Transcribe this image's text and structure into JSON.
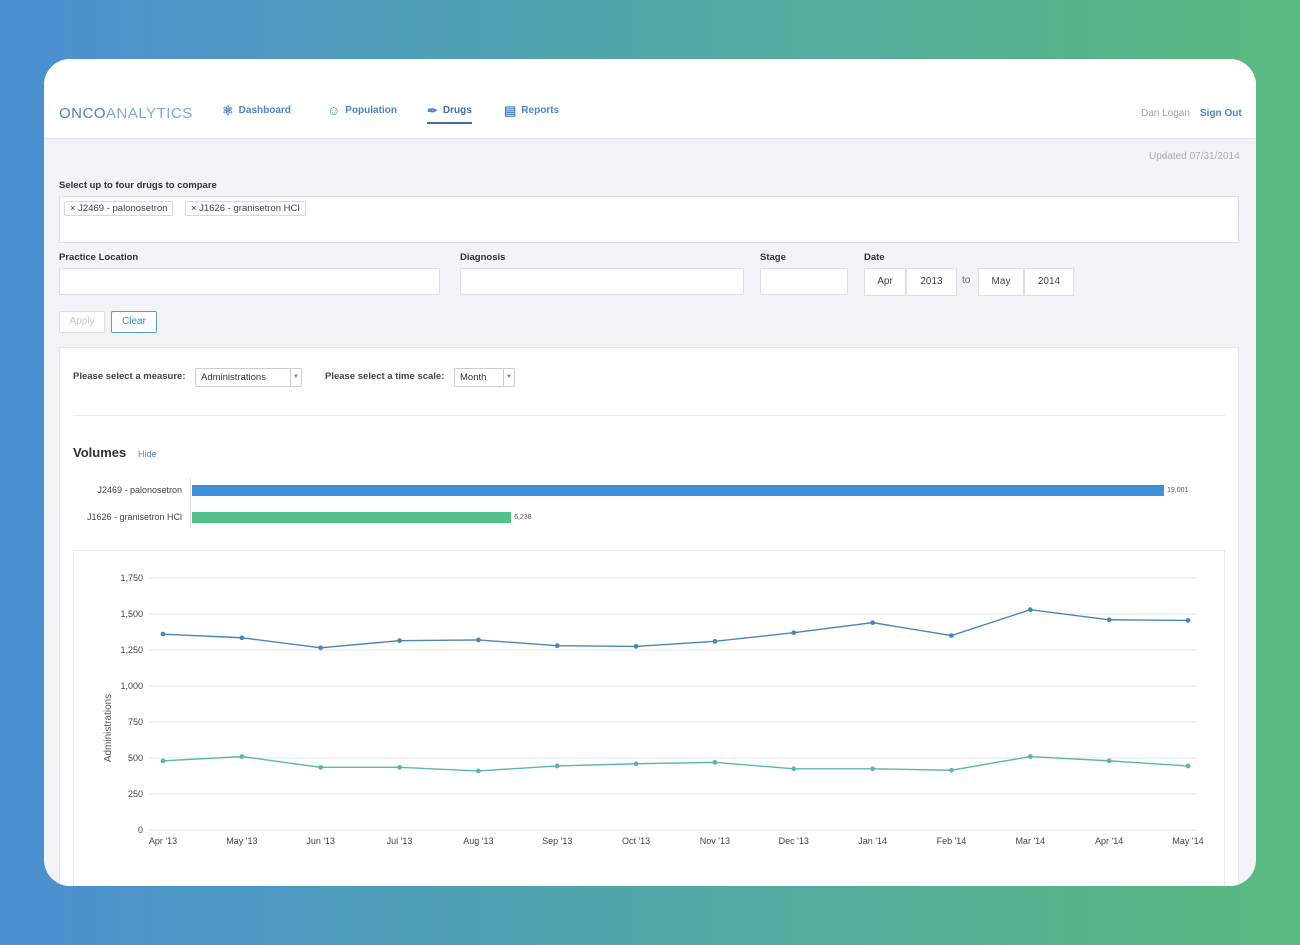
{
  "header": {
    "logo_bold": "ONCO",
    "logo_light": "ANALYTICS",
    "nav": [
      {
        "label": "Dashboard",
        "icon": "&#9883;"
      },
      {
        "label": "Population",
        "icon": "&#9786;"
      },
      {
        "label": "Drugs",
        "icon": "&#10002;"
      },
      {
        "label": "Reports",
        "icon": "&#9636;"
      }
    ],
    "user": "Dan Logan",
    "signout": "Sign Out"
  },
  "updated": "Updated 07/31/2014",
  "compare": {
    "label": "Select up to four drugs to compare",
    "tags": [
      "× J2469 - palonosetron",
      "× J1626 - granisetron HCl"
    ]
  },
  "filters": {
    "practice_location": "Practice Location",
    "diagnosis": "Diagnosis",
    "stage": "Stage",
    "date": "Date",
    "date_from_month": "Apr",
    "date_from_year": "2013",
    "date_to": "to",
    "date_to_month": "May",
    "date_to_year": "2014",
    "apply": "Apply",
    "clear": "Clear"
  },
  "controls": {
    "measure_label": "Please select a measure:",
    "measure_value": "Administrations",
    "scale_label": "Please select a time scale:",
    "scale_value": "Month"
  },
  "volumes": {
    "title": "Volumes",
    "hide": "Hide",
    "max": 19001,
    "items": [
      {
        "name": "J2469 - palonosetron",
        "value": 19001,
        "value_label": "19,001",
        "color": "#3f8fd8"
      },
      {
        "name": "J1626 - granisetron HCl",
        "value": 6238,
        "value_label": "6,238",
        "color": "#52c08a"
      }
    ]
  },
  "chart_data": {
    "type": "line",
    "ylabel": "Administrations",
    "ylim": [
      0,
      1750
    ],
    "yticks": [
      0,
      250,
      500,
      750,
      1000,
      1250,
      1500,
      1750
    ],
    "ytick_labels": [
      "0",
      "250",
      "500",
      "750",
      "1,000",
      "1,250",
      "1,500",
      "1,750"
    ],
    "categories": [
      "Apr '13",
      "May '13",
      "Jun '13",
      "Jul '13",
      "Aug '13",
      "Sep '13",
      "Oct '13",
      "Nov '13",
      "Dec '13",
      "Jan '14",
      "Feb '14",
      "Mar '14",
      "Apr '14",
      "May '14"
    ],
    "series": [
      {
        "name": "J2469 - palonosetron",
        "color": "#4a86b8",
        "values": [
          1360,
          1335,
          1265,
          1315,
          1320,
          1280,
          1275,
          1310,
          1370,
          1440,
          1350,
          1530,
          1460,
          1455
        ]
      },
      {
        "name": "J1626 - granisetron HCl",
        "color": "#5cb8a6",
        "values": [
          480,
          510,
          435,
          435,
          410,
          445,
          460,
          470,
          425,
          425,
          415,
          510,
          480,
          445
        ]
      }
    ],
    "grid": true
  }
}
